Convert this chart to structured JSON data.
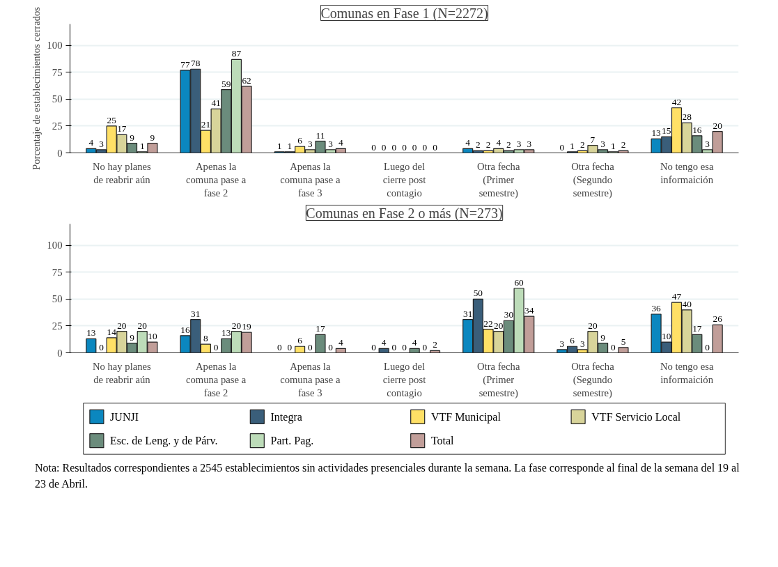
{
  "chart_data": [
    {
      "type": "bar",
      "title": "Comunas en Fase 1 (N=2272)",
      "ylabel": "Porcentaje de establecimientos cerrados",
      "categories": [
        "No hay planes\nde reabrir aún",
        "Apenas la\ncomuna pase a\nfase 2",
        "Apenas la\ncomuna pase a\nfase 3",
        "Luego del\ncierre post\ncontagio",
        "Otra fecha\n(Primer\nsemestre)",
        "Otra fecha\n(Segundo\nsemestre)",
        "No tengo esa\ninformaición"
      ],
      "series": [
        {
          "color": "#0b87bf",
          "values": [
            4,
            77,
            1,
            0,
            4,
            0,
            13
          ]
        },
        {
          "color": "#3a5e7a",
          "values": [
            3,
            78,
            1,
            0,
            2,
            1,
            15
          ]
        },
        {
          "color": "#ffe066",
          "values": [
            25,
            21,
            6,
            0,
            2,
            2,
            42
          ]
        },
        {
          "color": "#d8d49a",
          "values": [
            17,
            41,
            3,
            0,
            4,
            7,
            28
          ]
        },
        {
          "color": "#6b8c7c",
          "values": [
            9,
            59,
            11,
            0,
            2,
            3,
            16
          ]
        },
        {
          "color": "#bddcb9",
          "values": [
            1,
            87,
            3,
            0,
            3,
            1,
            3
          ]
        },
        {
          "color": "#c19e99",
          "values": [
            9,
            62,
            4,
            0,
            3,
            2,
            20
          ]
        }
      ],
      "ylim": [
        0,
        120
      ],
      "yticks": [
        0,
        25,
        50,
        75,
        100
      ],
      "grid": "y",
      "data_labels": true
    },
    {
      "type": "bar",
      "title": "Comunas en Fase 2 o más (N=273)",
      "categories": [
        "No hay planes\nde reabrir aún",
        "Apenas la\ncomuna pase a\nfase 2",
        "Apenas la\ncomuna pase a\nfase 3",
        "Luego del\ncierre post\ncontagio",
        "Otra fecha\n(Primer\nsemestre)",
        "Otra fecha\n(Segundo\nsemestre)",
        "No tengo esa\ninformaición"
      ],
      "series": [
        {
          "name": "JUNJI",
          "color": "#0b87bf",
          "values": [
            13,
            16,
            0,
            0,
            31,
            3,
            36
          ]
        },
        {
          "name": "Integra",
          "color": "#3a5e7a",
          "values": [
            0,
            31,
            0,
            4,
            50,
            6,
            10
          ]
        },
        {
          "name": "VTF Municipal",
          "color": "#ffe066",
          "values": [
            14,
            8,
            6,
            0,
            22,
            3,
            47
          ]
        },
        {
          "name": "VTF Servicio Local",
          "color": "#d8d49a",
          "values": [
            20,
            0,
            0,
            0,
            20,
            20,
            40
          ]
        },
        {
          "name": "Esc. de Leng. y de Párv.",
          "color": "#6b8c7c",
          "values": [
            9,
            13,
            17,
            4,
            30,
            9,
            17
          ]
        },
        {
          "name": "Part. Pag.",
          "color": "#bddcb9",
          "values": [
            20,
            20,
            0,
            0,
            60,
            0,
            0
          ]
        },
        {
          "name": "Total",
          "color": "#c19e99",
          "values": [
            10,
            19,
            4,
            2,
            34,
            5,
            26
          ]
        }
      ],
      "ylim": [
        0,
        120
      ],
      "yticks": [
        0,
        25,
        50,
        75,
        100
      ],
      "grid": "y",
      "data_labels": true,
      "legend": "bottom",
      "annotations": [
        "Nota: Resultados correspondientes a 2545 establecimientos sin actividades presenciales durante la semana. La fase corresponde al final de la semana del 19 al 23 de Abril."
      ]
    }
  ]
}
